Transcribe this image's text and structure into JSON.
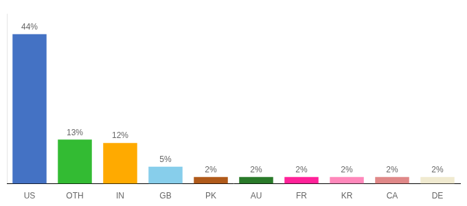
{
  "chart_data": {
    "type": "bar",
    "categories": [
      "US",
      "OTH",
      "IN",
      "GB",
      "PK",
      "AU",
      "FR",
      "KR",
      "CA",
      "DE"
    ],
    "values": [
      44,
      13,
      12,
      5,
      2,
      2,
      2,
      2,
      2,
      2
    ],
    "value_labels": [
      "44%",
      "13%",
      "12%",
      "5%",
      "2%",
      "2%",
      "2%",
      "2%",
      "2%",
      "2%"
    ],
    "colors": [
      "#4472c4",
      "#33bb33",
      "#ffaa00",
      "#87ceeb",
      "#b05a1a",
      "#2a7a2a",
      "#ff2299",
      "#ff88bb",
      "#e08888",
      "#f0ead0"
    ],
    "ylim": [
      0,
      50
    ],
    "data_labels": true,
    "tick_labels": "x",
    "grid": false
  }
}
